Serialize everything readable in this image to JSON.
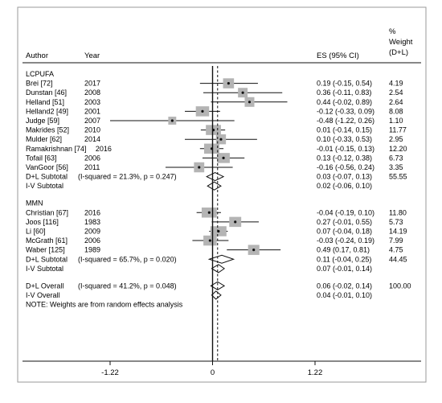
{
  "chart_data": {
    "type": "forest",
    "headers": {
      "author": "Author",
      "year": "Year",
      "es": "ES (95% CI)",
      "weight_lines": [
        "%",
        "Weight",
        "(D+L)"
      ]
    },
    "groups": [
      {
        "name": "LCPUFA",
        "studies": [
          {
            "author": "Brei [72]",
            "year": "2017",
            "es": 0.19,
            "lo": -0.15,
            "hi": 0.54,
            "ci_text": "0.19 (-0.15, 0.54)",
            "weight": "4.19"
          },
          {
            "author": "Dunstan [46]",
            "year": "2008",
            "es": 0.36,
            "lo": -0.11,
            "hi": 0.83,
            "ci_text": "0.36 (-0.11, 0.83)",
            "weight": "2.54"
          },
          {
            "author": "Helland [51]",
            "year": "2003",
            "es": 0.44,
            "lo": -0.02,
            "hi": 0.89,
            "ci_text": "0.44 (-0.02, 0.89)",
            "weight": "2.64"
          },
          {
            "author": "Helland2 [49]",
            "year": "2001",
            "es": -0.12,
            "lo": -0.33,
            "hi": 0.09,
            "ci_text": "-0.12 (-0.33, 0.09)",
            "weight": "8.08"
          },
          {
            "author": "Judge [59]",
            "year": "2007",
            "es": -0.48,
            "lo": -1.22,
            "hi": 0.26,
            "ci_text": "-0.48 (-1.22, 0.26)",
            "weight": "1.10"
          },
          {
            "author": "Makrides [52]",
            "year": "2010",
            "es": 0.01,
            "lo": -0.14,
            "hi": 0.15,
            "ci_text": "0.01 (-0.14, 0.15)",
            "weight": "11.77"
          },
          {
            "author": "Mulder [62]",
            "year": "2014",
            "es": 0.1,
            "lo": -0.33,
            "hi": 0.53,
            "ci_text": "0.10 (-0.33, 0.53)",
            "weight": "2.95"
          },
          {
            "author": "Ramakrishnan [74]",
            "year": "2016",
            "year_inline": true,
            "es": -0.01,
            "lo": -0.15,
            "hi": 0.13,
            "ci_text": "-0.01 (-0.15, 0.13)",
            "weight": "12.20"
          },
          {
            "author": "Tofail [63]",
            "year": "2006",
            "es": 0.13,
            "lo": -0.12,
            "hi": 0.38,
            "ci_text": "0.13 (-0.12, 0.38)",
            "weight": "6.73"
          },
          {
            "author": "VanGoor [56]",
            "year": "2011",
            "es": -0.16,
            "lo": -0.56,
            "hi": 0.24,
            "ci_text": "-0.16 (-0.56, 0.24)",
            "weight": "3.35"
          }
        ],
        "subtotals": [
          {
            "label": "D+L Subtotal",
            "stats": "(I-squared = 21.3%, p = 0.247)",
            "es": 0.03,
            "lo": -0.07,
            "hi": 0.13,
            "ci_text": "0.03 (-0.07, 0.13)",
            "weight": "55.55"
          },
          {
            "label": "I-V Subtotal",
            "stats": "",
            "es": 0.02,
            "lo": -0.06,
            "hi": 0.1,
            "ci_text": "0.02 (-0.06, 0.10)",
            "weight": ""
          }
        ]
      },
      {
        "name": "MMN",
        "studies": [
          {
            "author": "Christian [67]",
            "year": "2016",
            "es": -0.04,
            "lo": -0.19,
            "hi": 0.1,
            "ci_text": "-0.04 (-0.19, 0.10)",
            "weight": "11.80"
          },
          {
            "author": "Joos [116]",
            "year": "1983",
            "es": 0.27,
            "lo": -0.01,
            "hi": 0.55,
            "ci_text": "0.27 (-0.01, 0.55)",
            "weight": "5.73"
          },
          {
            "author": "Li [60]",
            "year": "2009",
            "es": 0.07,
            "lo": -0.04,
            "hi": 0.18,
            "ci_text": "0.07 (-0.04, 0.18)",
            "weight": "14.19"
          },
          {
            "author": "McGrath [61]",
            "year": "2006",
            "es": -0.03,
            "lo": -0.24,
            "hi": 0.19,
            "ci_text": "-0.03 (-0.24, 0.19)",
            "weight": "7.99"
          },
          {
            "author": "Waber [125]",
            "year": "1989",
            "es": 0.49,
            "lo": 0.17,
            "hi": 0.81,
            "ci_text": "0.49 (0.17, 0.81)",
            "weight": "4.75"
          }
        ],
        "subtotals": [
          {
            "label": "D+L Subtotal",
            "stats": "(I-squared = 65.7%, p = 0.020)",
            "es": 0.11,
            "lo": -0.04,
            "hi": 0.25,
            "ci_text": "0.11 (-0.04, 0.25)",
            "weight": "44.45"
          },
          {
            "label": "I-V Subtotal",
            "stats": "",
            "es": 0.07,
            "lo": -0.01,
            "hi": 0.14,
            "ci_text": "0.07 (-0.01, 0.14)",
            "weight": ""
          }
        ]
      }
    ],
    "overall": [
      {
        "label": "D+L Overall",
        "stats": "(I-squared = 41.2%, p = 0.048)",
        "es": 0.06,
        "lo": -0.02,
        "hi": 0.14,
        "ci_text": "0.06 (-0.02, 0.14)",
        "weight": "100.00"
      },
      {
        "label": "I-V Overall",
        "stats": "",
        "es": 0.04,
        "lo": -0.01,
        "hi": 0.1,
        "ci_text": "0.04 (-0.01, 0.10)",
        "weight": ""
      }
    ],
    "note": "NOTE: Weights are from random effects analysis",
    "x_ticks": [
      {
        "value": -1.22,
        "label": "-1.22"
      },
      {
        "value": 0,
        "label": "0"
      },
      {
        "value": 1.22,
        "label": "1.22"
      }
    ],
    "xlim": [
      -1.22,
      1.22
    ],
    "null_line": 0,
    "pooled_line": 0.06,
    "colors": {
      "box": "#b4b4b4",
      "line": "#111111",
      "frame": "#999999"
    }
  }
}
